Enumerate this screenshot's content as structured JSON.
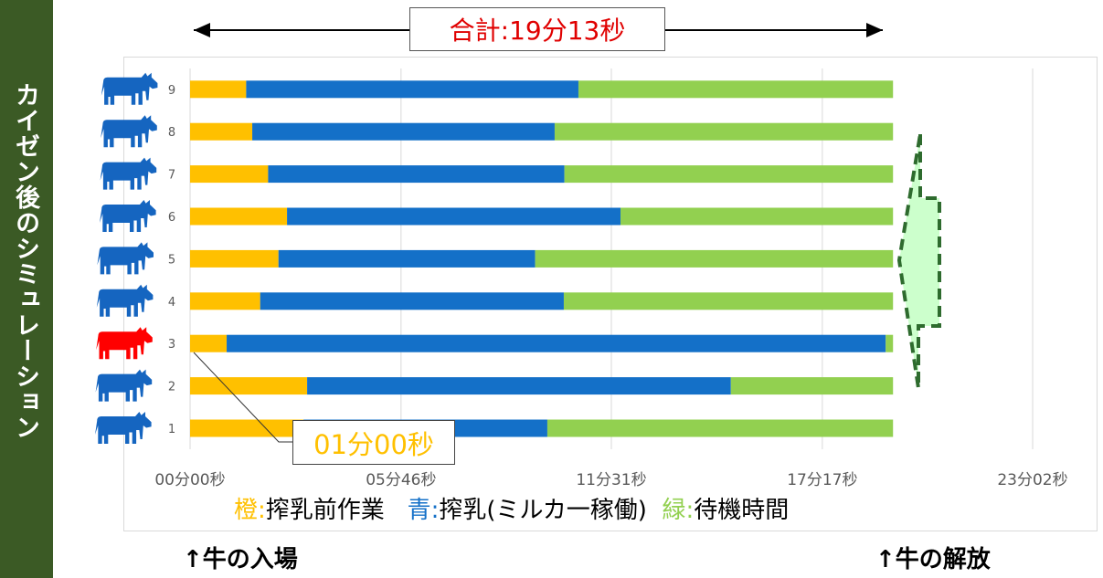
{
  "sidebar": {
    "title": "カイゼン後のシミュレーション"
  },
  "total": {
    "label": "合計:19分13秒"
  },
  "callout": {
    "label": "01分00秒",
    "row": 3
  },
  "legend": {
    "orange_key": "橙",
    "orange_sep": ":",
    "orange_label": "搾乳前作業",
    "blue_key": "青",
    "blue_sep": ":",
    "blue_label": "搾乳(ミルカ一稼働)",
    "green_key": "緑",
    "green_sep": ":",
    "green_label": "待機時間"
  },
  "notes": {
    "entry": "↑牛の入場",
    "release": "↑牛の解放"
  },
  "colors": {
    "orange": "#FFC000",
    "blue": "#1470C8",
    "green": "#92D050",
    "cow": "#1565C0",
    "cow_highlight": "#FF0000",
    "sidebar": "#3B5A25"
  },
  "chart_data": {
    "type": "bar",
    "orientation": "horizontal",
    "stacked": true,
    "categories": [
      "1",
      "2",
      "3",
      "4",
      "5",
      "6",
      "7",
      "8",
      "9"
    ],
    "highlight_category": "3",
    "series": [
      {
        "name": "搾乳前作業",
        "color": "#FFC000",
        "values": [
          186,
          192,
          60,
          115,
          145,
          159,
          128,
          102,
          92
        ]
      },
      {
        "name": "搾乳",
        "color": "#1470C8",
        "values": [
          400,
          695,
          1081,
          498,
          421,
          547,
          486,
          496,
          545
        ]
      },
      {
        "name": "待機時間",
        "color": "#92D050",
        "values": [
          567,
          266,
          12,
          540,
          587,
          447,
          539,
          555,
          516
        ]
      }
    ],
    "x_unit": "seconds",
    "xlim": [
      0,
      1382
    ],
    "x_ticks": [
      0,
      346,
      691,
      1037,
      1382
    ],
    "x_tick_labels": [
      "00分00秒",
      "05分46秒",
      "11分31秒",
      "17分17秒",
      "23分02秒"
    ],
    "total_seconds": 1153,
    "grid": true
  }
}
